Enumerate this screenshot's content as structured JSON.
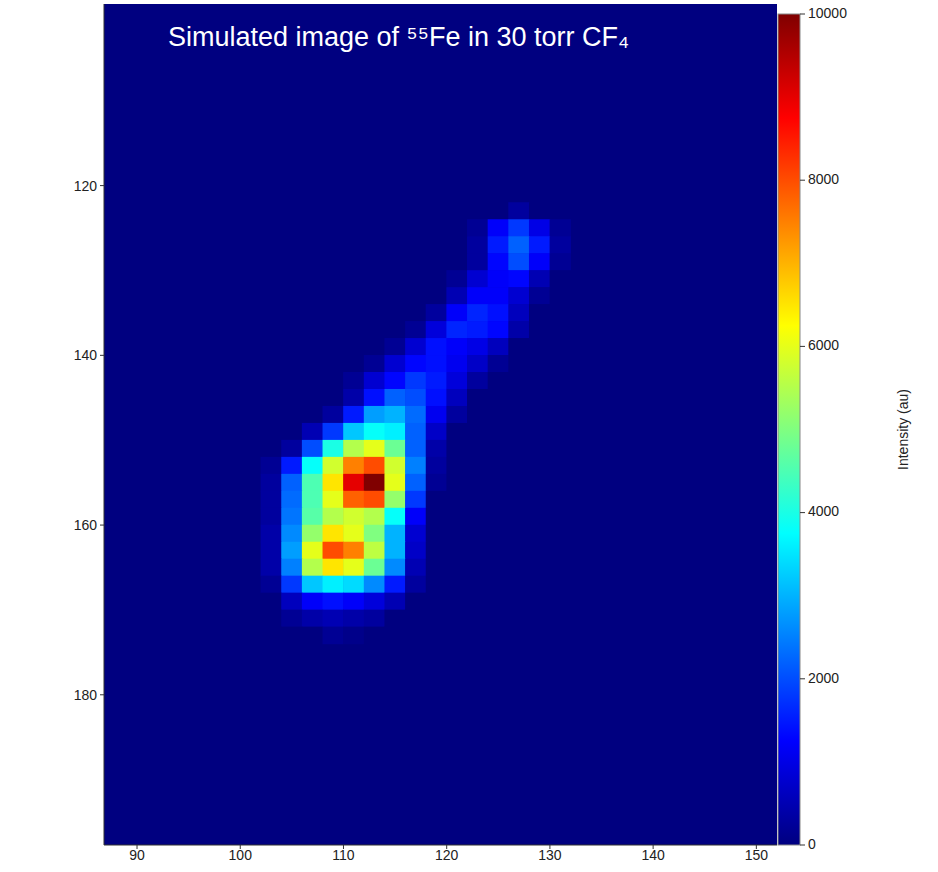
{
  "chart_data": {
    "type": "heatmap",
    "title": "Simulated image of ⁵⁵Fe in 30 torr CF₄",
    "x": [
      103,
      105,
      107,
      109,
      111,
      113,
      115,
      117,
      119,
      121,
      123,
      125,
      127,
      129,
      131
    ],
    "y": [
      123,
      125,
      127,
      129,
      131,
      133,
      135,
      137,
      139,
      141,
      143,
      145,
      147,
      149,
      151,
      153,
      155,
      157,
      159,
      161,
      163,
      165,
      167,
      169,
      171,
      173
    ],
    "values": [
      [
        0,
        0,
        0,
        0,
        0,
        0,
        0,
        0,
        0,
        0,
        0,
        0,
        300,
        0,
        0
      ],
      [
        0,
        0,
        0,
        0,
        0,
        0,
        0,
        0,
        0,
        0,
        200,
        1200,
        1800,
        1000,
        200
      ],
      [
        0,
        0,
        0,
        0,
        0,
        0,
        0,
        0,
        0,
        0,
        300,
        1500,
        2200,
        1500,
        300
      ],
      [
        0,
        0,
        0,
        0,
        0,
        0,
        0,
        0,
        0,
        0,
        300,
        1300,
        2000,
        1200,
        200
      ],
      [
        0,
        0,
        0,
        0,
        0,
        0,
        0,
        0,
        0,
        200,
        800,
        1200,
        1300,
        500,
        0
      ],
      [
        0,
        0,
        0,
        0,
        0,
        0,
        0,
        0,
        0,
        500,
        1200,
        1200,
        800,
        200,
        0
      ],
      [
        0,
        0,
        0,
        0,
        0,
        0,
        0,
        0,
        300,
        1200,
        1600,
        1400,
        600,
        0,
        0
      ],
      [
        0,
        0,
        0,
        0,
        0,
        0,
        0,
        200,
        900,
        1600,
        1500,
        1300,
        400,
        0,
        0
      ],
      [
        0,
        0,
        0,
        0,
        0,
        0,
        200,
        800,
        1400,
        1200,
        1000,
        600,
        0,
        0,
        0
      ],
      [
        0,
        0,
        0,
        0,
        0,
        200,
        800,
        1300,
        1400,
        1100,
        700,
        200,
        0,
        0,
        0
      ],
      [
        0,
        0,
        0,
        0,
        200,
        800,
        1300,
        1800,
        1500,
        900,
        300,
        0,
        0,
        0,
        0
      ],
      [
        0,
        0,
        0,
        0,
        400,
        1400,
        2200,
        2000,
        1400,
        600,
        0,
        0,
        0,
        0,
        0
      ],
      [
        0,
        0,
        0,
        300,
        1500,
        2800,
        3000,
        2300,
        1100,
        300,
        0,
        0,
        0,
        0,
        0
      ],
      [
        0,
        0,
        500,
        1800,
        3200,
        3800,
        3600,
        2200,
        700,
        0,
        0,
        0,
        0,
        0,
        0
      ],
      [
        0,
        300,
        2000,
        4000,
        5500,
        6000,
        4800,
        2200,
        400,
        0,
        0,
        0,
        0,
        0,
        0
      ],
      [
        200,
        1500,
        3800,
        5800,
        7500,
        8000,
        5800,
        2500,
        300,
        0,
        0,
        0,
        0,
        0,
        0
      ],
      [
        300,
        2200,
        4500,
        6500,
        9000,
        10000,
        6000,
        2200,
        200,
        0,
        0,
        0,
        0,
        0,
        0
      ],
      [
        300,
        2300,
        4500,
        6000,
        7800,
        8000,
        5200,
        1800,
        0,
        0,
        0,
        0,
        0,
        0,
        0
      ],
      [
        300,
        2400,
        4600,
        5500,
        5800,
        5500,
        3800,
        1200,
        0,
        0,
        0,
        0,
        0,
        0,
        0
      ],
      [
        400,
        2600,
        5200,
        6500,
        6000,
        5000,
        3000,
        800,
        0,
        0,
        0,
        0,
        0,
        0,
        0
      ],
      [
        400,
        2800,
        6000,
        8000,
        7500,
        5600,
        3000,
        700,
        0,
        0,
        0,
        0,
        0,
        0,
        0
      ],
      [
        400,
        2500,
        5500,
        6500,
        6000,
        4800,
        2600,
        500,
        0,
        0,
        0,
        0,
        0,
        0,
        0
      ],
      [
        200,
        1800,
        3200,
        3600,
        3400,
        2600,
        1500,
        300,
        0,
        0,
        0,
        0,
        0,
        0,
        0
      ],
      [
        0,
        600,
        1200,
        1400,
        1200,
        900,
        500,
        0,
        0,
        0,
        0,
        0,
        0,
        0,
        0
      ],
      [
        0,
        200,
        400,
        500,
        400,
        300,
        0,
        0,
        0,
        0,
        0,
        0,
        0,
        0,
        0
      ],
      [
        0,
        0,
        0,
        200,
        100,
        0,
        0,
        0,
        0,
        0,
        0,
        0,
        0,
        0,
        0
      ]
    ],
    "xlim": [
      86.8,
      152
    ],
    "xticks": [
      90,
      100,
      110,
      120,
      130,
      140,
      150
    ],
    "ylim": [
      98.6,
      197.7
    ],
    "yticks": [
      120,
      140,
      160,
      180
    ],
    "colorbar_range": [
      0,
      10000
    ],
    "colorbar_ticks": [
      0,
      2000,
      4000,
      6000,
      8000,
      10000
    ],
    "colorbar_label": "Intensity (au)"
  }
}
